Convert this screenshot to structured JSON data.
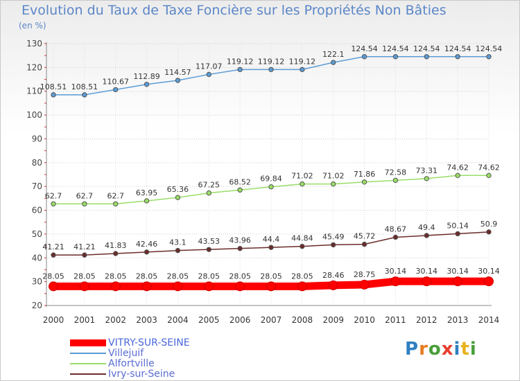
{
  "title": "Evolution du Taux de Taxe Foncière sur les Propriétés Non Bâties",
  "unit_label": "(en %)",
  "brand": {
    "letters": [
      {
        "ch": "P",
        "color": "#2f7fc1"
      },
      {
        "ch": "r",
        "color": "#e87a1e"
      },
      {
        "ch": "o",
        "color": "#4a9e3a"
      },
      {
        "ch": "x",
        "color": "#e83e2e"
      },
      {
        "ch": "i",
        "color": "#2f7fc1"
      },
      {
        "ch": "t",
        "color": "#e8b21e"
      },
      {
        "ch": "i",
        "color": "#4a9e3a"
      }
    ]
  },
  "chart_data": {
    "type": "line",
    "title": "Evolution du Taux de Taxe Foncière sur les Propriétés Non Bâties",
    "ylabel": "(en %)",
    "xlabel": "",
    "ylim": [
      20,
      130
    ],
    "yticks": [
      20,
      30,
      40,
      50,
      60,
      70,
      80,
      90,
      100,
      110,
      120,
      130
    ],
    "grid": true,
    "legend_position": "bottom-left",
    "categories": [
      "2000",
      "2001",
      "2002",
      "2003",
      "2004",
      "2005",
      "2006",
      "2007",
      "2008",
      "2009",
      "2010",
      "2011",
      "2012",
      "2013",
      "2014"
    ],
    "series": [
      {
        "name": "VITRY-SUR-SEINE",
        "color": "#ff0000",
        "values": [
          28.05,
          28.05,
          28.05,
          28.05,
          28.05,
          28.05,
          28.05,
          28.05,
          28.05,
          28.46,
          28.75,
          30.14,
          30.14,
          30.14,
          30.14
        ],
        "labels": [
          "28.05",
          "28.05",
          "28.05",
          "28.05",
          "28.05",
          "28.05",
          "28.05",
          "28.05",
          "28.05",
          "28.46",
          "28.75",
          "30.14",
          "30.14",
          "30.14",
          "30.14"
        ]
      },
      {
        "name": "Villejuif",
        "color": "#5b9bd5",
        "values": [
          108.51,
          108.51,
          110.67,
          112.89,
          114.57,
          117.07,
          119.12,
          119.12,
          119.12,
          122.1,
          124.54,
          124.54,
          124.54,
          124.54,
          124.54
        ],
        "labels": [
          "108.51",
          "108.51",
          "110.67",
          "112.89",
          "114.57",
          "117.07",
          "119.12",
          "119.12",
          "119.12",
          "122.1",
          "124.54",
          "124.54",
          "124.54",
          "124.54",
          "124.54"
        ]
      },
      {
        "name": "Alfortville",
        "color": "#99dd66",
        "values": [
          62.7,
          62.7,
          62.7,
          63.95,
          65.36,
          67.25,
          68.52,
          69.84,
          71.02,
          71.02,
          71.86,
          72.58,
          73.31,
          74.62,
          74.62
        ],
        "labels": [
          "62.7",
          "62.7",
          "62.7",
          "63.95",
          "65.36",
          "67.25",
          "68.52",
          "69.84",
          "71.02",
          "71.02",
          "71.86",
          "72.58",
          "73.31",
          "74.62",
          "74.62"
        ]
      },
      {
        "name": "Ivry-sur-Seine",
        "color": "#6b2b2b",
        "values": [
          41.21,
          41.21,
          41.83,
          42.46,
          43.1,
          43.53,
          43.96,
          44.4,
          44.84,
          45.49,
          45.72,
          48.67,
          49.4,
          50.14,
          50.9
        ],
        "labels": [
          "41.21",
          "41.21",
          "41.83",
          "42.46",
          "43.1",
          "43.53",
          "43.96",
          "44.4",
          "44.84",
          "45.49",
          "45.72",
          "48.67",
          "49.4",
          "50.14",
          "50.9"
        ]
      }
    ]
  }
}
